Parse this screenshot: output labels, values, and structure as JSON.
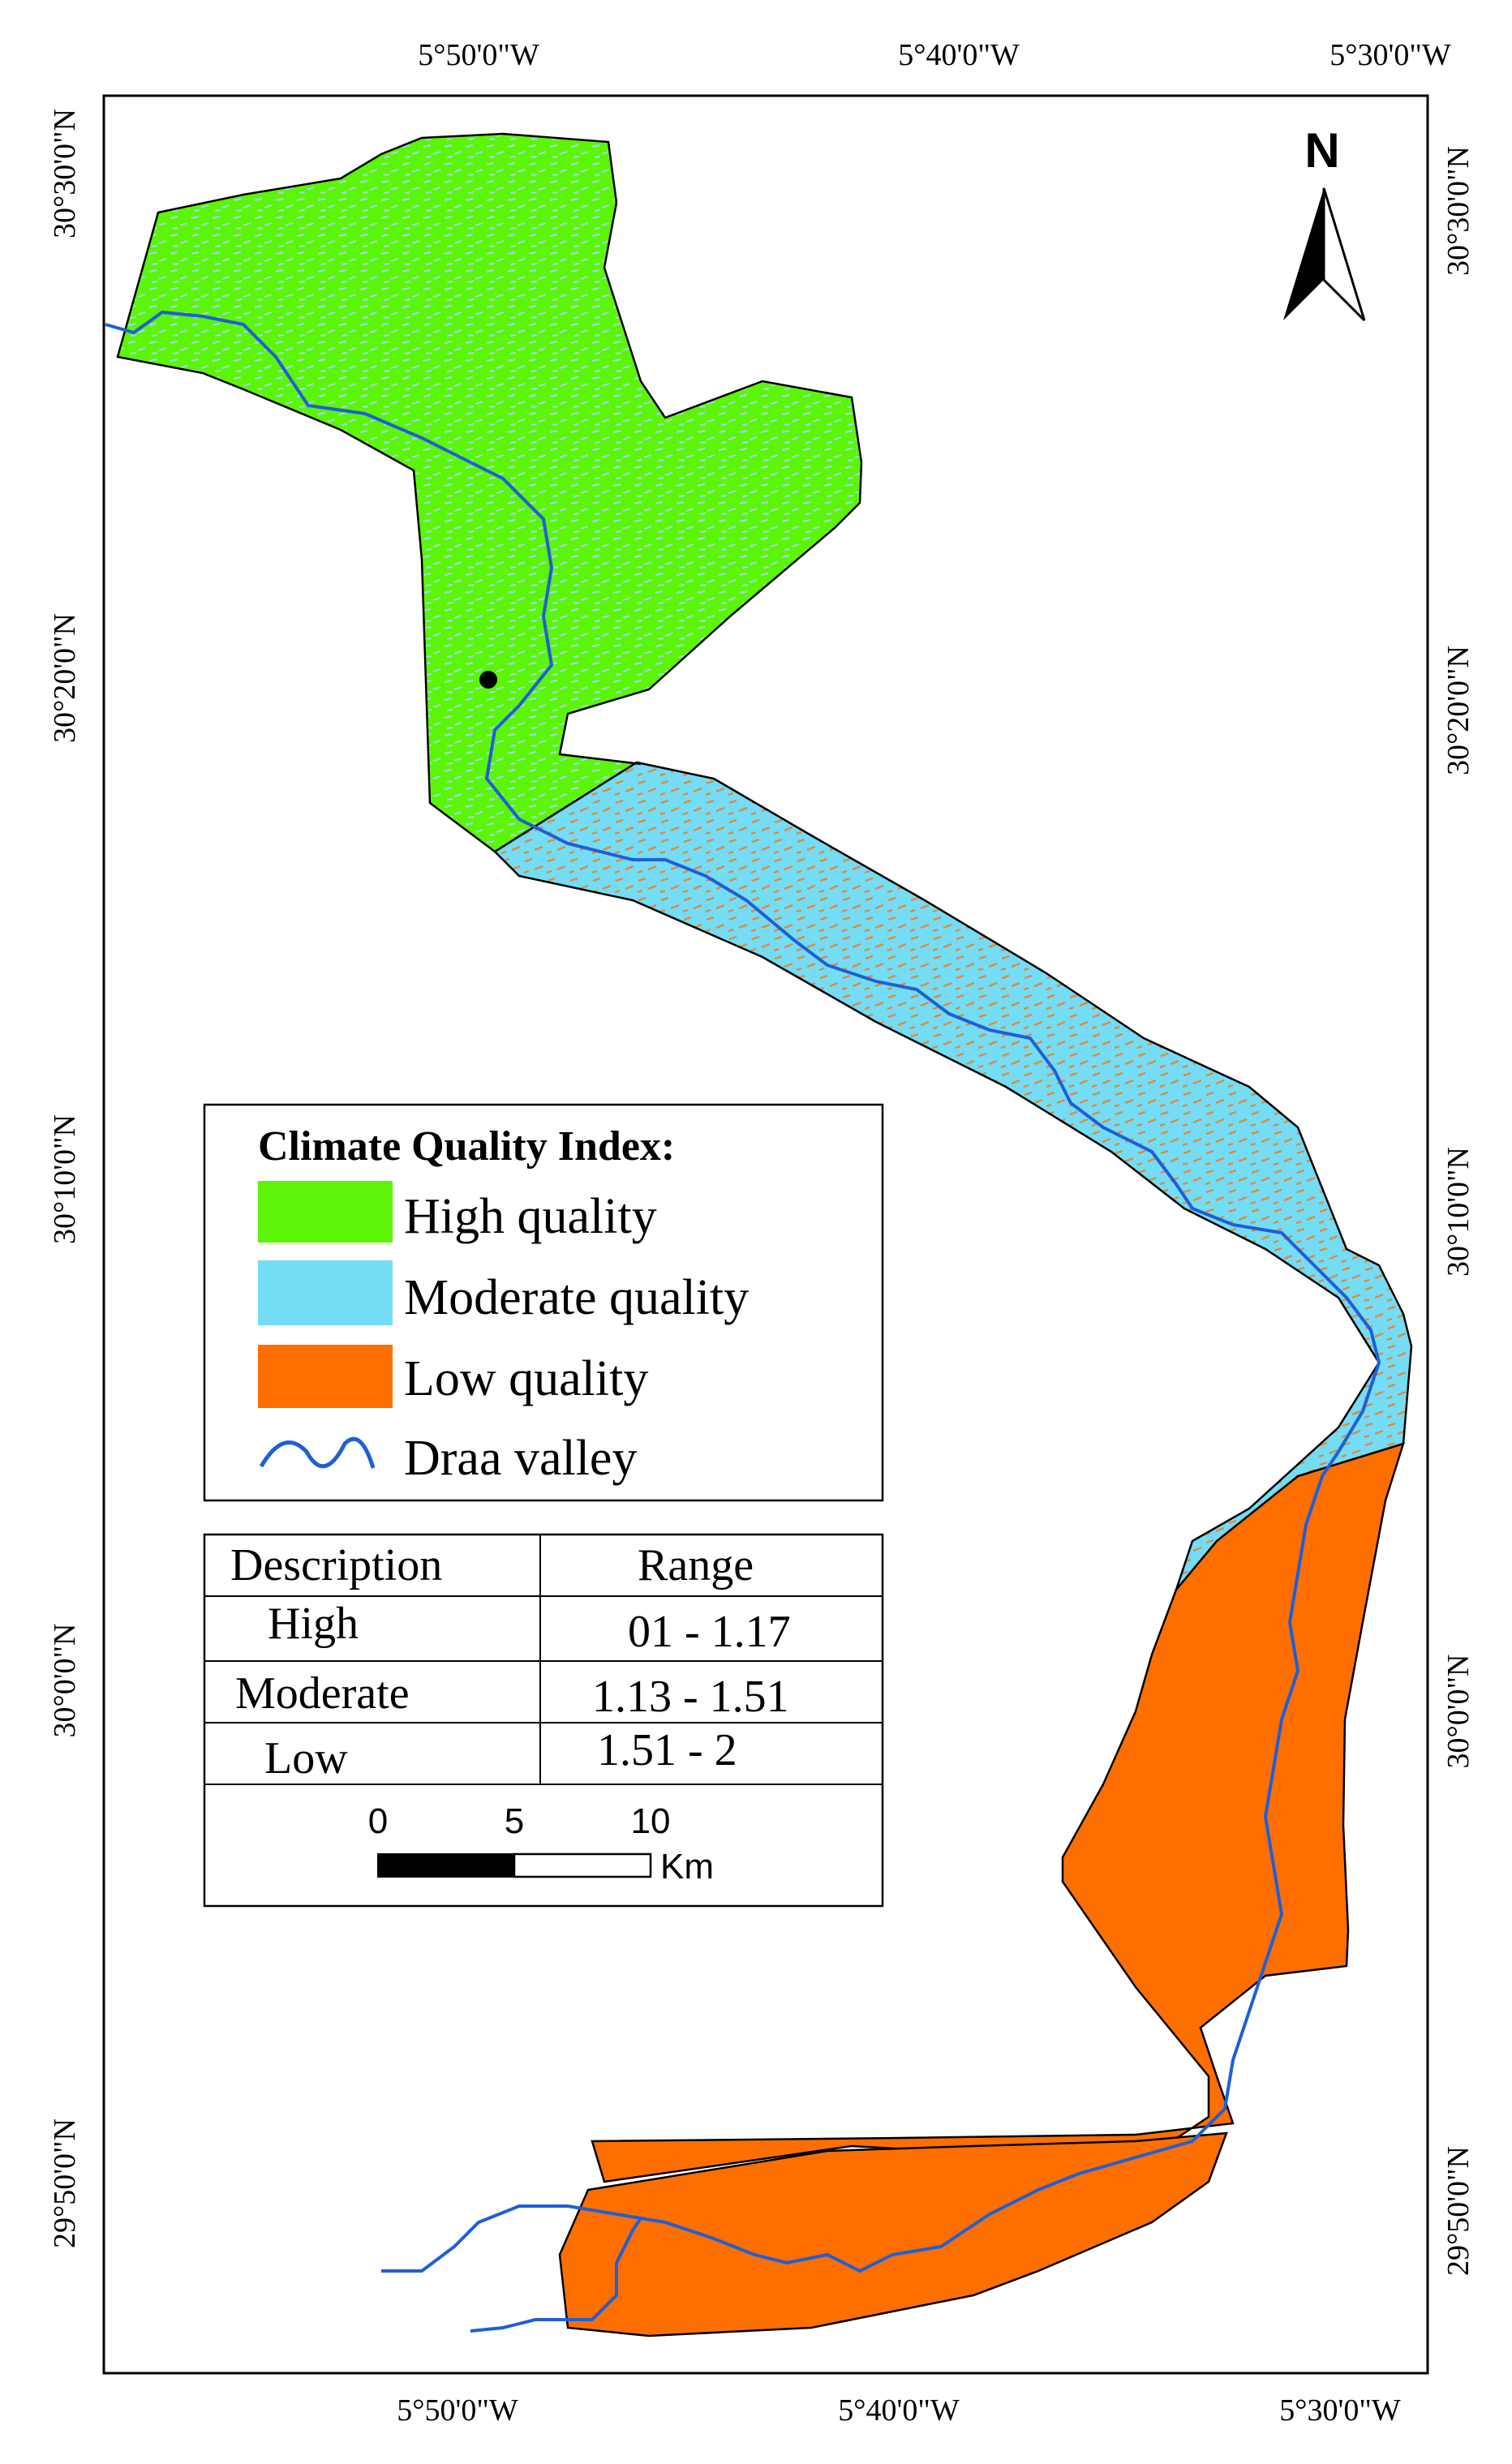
{
  "map": {
    "north_label": "N",
    "axes": {
      "top_longitudes": [
        "5°50'0\"W",
        "5°40'0\"W",
        "5°30'0\"W"
      ],
      "bottom_longitudes": [
        "5°50'0\"W",
        "5°40'0\"W",
        "5°30'0\"W"
      ],
      "left_latitudes": [
        "30°30'0\"N",
        "30°20'0\"N",
        "30°10'0\"N",
        "30°0'0\"N",
        "29°50'0\"N"
      ],
      "right_latitudes": [
        "30°30'0\"N",
        "30°20'0\"N",
        "30°10'0\"N",
        "30°0'0\"N",
        "29°50'0\"N"
      ]
    },
    "colors": {
      "high": "#5cf508",
      "moderate": "#74dcf5",
      "low": "#ff6f00",
      "river": "#1f5fd6",
      "border": "#000000"
    }
  },
  "legend": {
    "title": "Climate Quality Index:",
    "items": [
      {
        "label": "High quality",
        "color": "#5cf508"
      },
      {
        "label": "Moderate quality",
        "color": "#74dcf5"
      },
      {
        "label": "Low quality",
        "color": "#ff6f00"
      },
      {
        "label": "Draa valley",
        "color": "#1f5fd6"
      }
    ]
  },
  "range_table": {
    "headers": [
      "Description",
      "Range"
    ],
    "rows": [
      [
        "High",
        "01 - 1.17"
      ],
      [
        "Moderate",
        "1.13 - 1.51"
      ],
      [
        "Low",
        "1.51 - 2"
      ]
    ]
  },
  "scale_bar": {
    "ticks": [
      "0",
      "5",
      "10"
    ],
    "unit": "Km"
  }
}
